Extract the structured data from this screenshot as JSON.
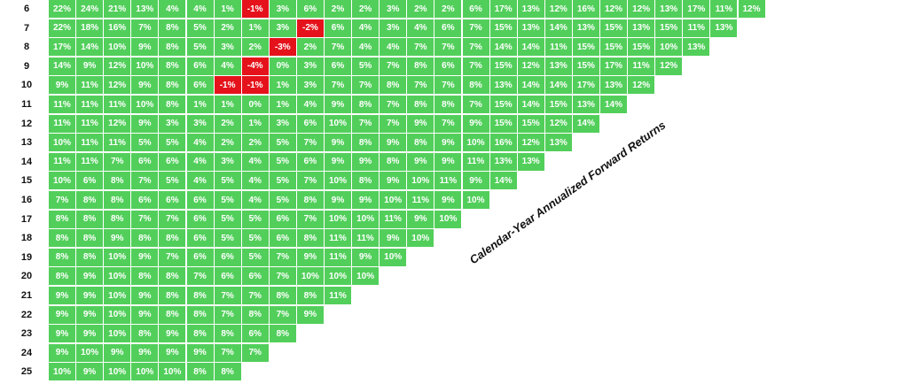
{
  "note": "Calendar-Year Annualized Forward Returns",
  "rows": [
    {
      "label": "6",
      "cells": [
        "22%",
        "24%",
        "21%",
        "13%",
        "4%",
        "4%",
        "1%",
        "-1%",
        "3%",
        "6%",
        "2%",
        "2%",
        "3%",
        "2%",
        "2%",
        "6%",
        "17%",
        "13%",
        "12%",
        "16%",
        "12%",
        "12%",
        "13%",
        "17%",
        "11%",
        "12%"
      ]
    },
    {
      "label": "7",
      "cells": [
        "22%",
        "18%",
        "16%",
        "7%",
        "8%",
        "5%",
        "2%",
        "1%",
        "3%",
        "-2%",
        "6%",
        "4%",
        "3%",
        "4%",
        "6%",
        "7%",
        "15%",
        "13%",
        "14%",
        "13%",
        "15%",
        "13%",
        "15%",
        "11%",
        "13%"
      ]
    },
    {
      "label": "8",
      "cells": [
        "17%",
        "14%",
        "10%",
        "9%",
        "8%",
        "5%",
        "3%",
        "2%",
        "-3%",
        "2%",
        "7%",
        "4%",
        "4%",
        "7%",
        "7%",
        "7%",
        "14%",
        "14%",
        "11%",
        "15%",
        "15%",
        "15%",
        "10%",
        "13%"
      ]
    },
    {
      "label": "9",
      "cells": [
        "14%",
        "9%",
        "12%",
        "10%",
        "8%",
        "6%",
        "4%",
        "-4%",
        "0%",
        "3%",
        "6%",
        "5%",
        "7%",
        "8%",
        "6%",
        "7%",
        "15%",
        "12%",
        "13%",
        "15%",
        "17%",
        "11%",
        "12%"
      ]
    },
    {
      "label": "10",
      "cells": [
        "9%",
        "11%",
        "12%",
        "9%",
        "8%",
        "6%",
        "-1%",
        "-1%",
        "1%",
        "3%",
        "7%",
        "7%",
        "8%",
        "7%",
        "7%",
        "8%",
        "13%",
        "14%",
        "14%",
        "17%",
        "13%",
        "12%"
      ]
    },
    {
      "label": "11",
      "cells": [
        "11%",
        "11%",
        "11%",
        "10%",
        "8%",
        "1%",
        "1%",
        "0%",
        "1%",
        "4%",
        "9%",
        "8%",
        "7%",
        "8%",
        "8%",
        "7%",
        "15%",
        "14%",
        "15%",
        "13%",
        "14%"
      ]
    },
    {
      "label": "12",
      "cells": [
        "11%",
        "11%",
        "12%",
        "9%",
        "3%",
        "3%",
        "2%",
        "1%",
        "3%",
        "6%",
        "10%",
        "7%",
        "7%",
        "9%",
        "7%",
        "9%",
        "15%",
        "15%",
        "12%",
        "14%"
      ]
    },
    {
      "label": "13",
      "cells": [
        "10%",
        "11%",
        "11%",
        "5%",
        "5%",
        "4%",
        "2%",
        "2%",
        "5%",
        "7%",
        "9%",
        "8%",
        "9%",
        "8%",
        "9%",
        "10%",
        "16%",
        "12%",
        "13%"
      ]
    },
    {
      "label": "14",
      "cells": [
        "11%",
        "11%",
        "7%",
        "6%",
        "6%",
        "4%",
        "3%",
        "4%",
        "5%",
        "6%",
        "9%",
        "9%",
        "8%",
        "9%",
        "9%",
        "11%",
        "13%",
        "13%"
      ]
    },
    {
      "label": "15",
      "cells": [
        "10%",
        "6%",
        "8%",
        "7%",
        "5%",
        "4%",
        "5%",
        "4%",
        "5%",
        "7%",
        "10%",
        "8%",
        "9%",
        "10%",
        "11%",
        "9%",
        "14%"
      ]
    },
    {
      "label": "16",
      "cells": [
        "7%",
        "8%",
        "8%",
        "6%",
        "6%",
        "6%",
        "5%",
        "4%",
        "5%",
        "8%",
        "9%",
        "9%",
        "10%",
        "11%",
        "9%",
        "10%"
      ]
    },
    {
      "label": "17",
      "cells": [
        "8%",
        "8%",
        "8%",
        "7%",
        "7%",
        "6%",
        "5%",
        "5%",
        "6%",
        "7%",
        "10%",
        "10%",
        "11%",
        "9%",
        "10%"
      ]
    },
    {
      "label": "18",
      "cells": [
        "8%",
        "8%",
        "9%",
        "8%",
        "8%",
        "6%",
        "5%",
        "5%",
        "6%",
        "8%",
        "11%",
        "11%",
        "9%",
        "10%"
      ]
    },
    {
      "label": "19",
      "cells": [
        "8%",
        "8%",
        "10%",
        "9%",
        "7%",
        "6%",
        "6%",
        "5%",
        "7%",
        "9%",
        "11%",
        "9%",
        "10%"
      ]
    },
    {
      "label": "20",
      "cells": [
        "8%",
        "9%",
        "10%",
        "8%",
        "8%",
        "7%",
        "6%",
        "6%",
        "7%",
        "10%",
        "10%",
        "10%"
      ]
    },
    {
      "label": "21",
      "cells": [
        "9%",
        "9%",
        "10%",
        "9%",
        "8%",
        "8%",
        "7%",
        "7%",
        "8%",
        "8%",
        "11%"
      ]
    },
    {
      "label": "22",
      "cells": [
        "9%",
        "9%",
        "10%",
        "9%",
        "8%",
        "8%",
        "7%",
        "8%",
        "7%",
        "9%"
      ]
    },
    {
      "label": "23",
      "cells": [
        "9%",
        "9%",
        "10%",
        "8%",
        "9%",
        "8%",
        "8%",
        "6%",
        "8%"
      ]
    },
    {
      "label": "24",
      "cells": [
        "9%",
        "10%",
        "9%",
        "9%",
        "9%",
        "9%",
        "7%",
        "7%"
      ]
    },
    {
      "label": "25",
      "cells": [
        "10%",
        "9%",
        "10%",
        "10%",
        "10%",
        "8%",
        "8%"
      ]
    }
  ]
}
